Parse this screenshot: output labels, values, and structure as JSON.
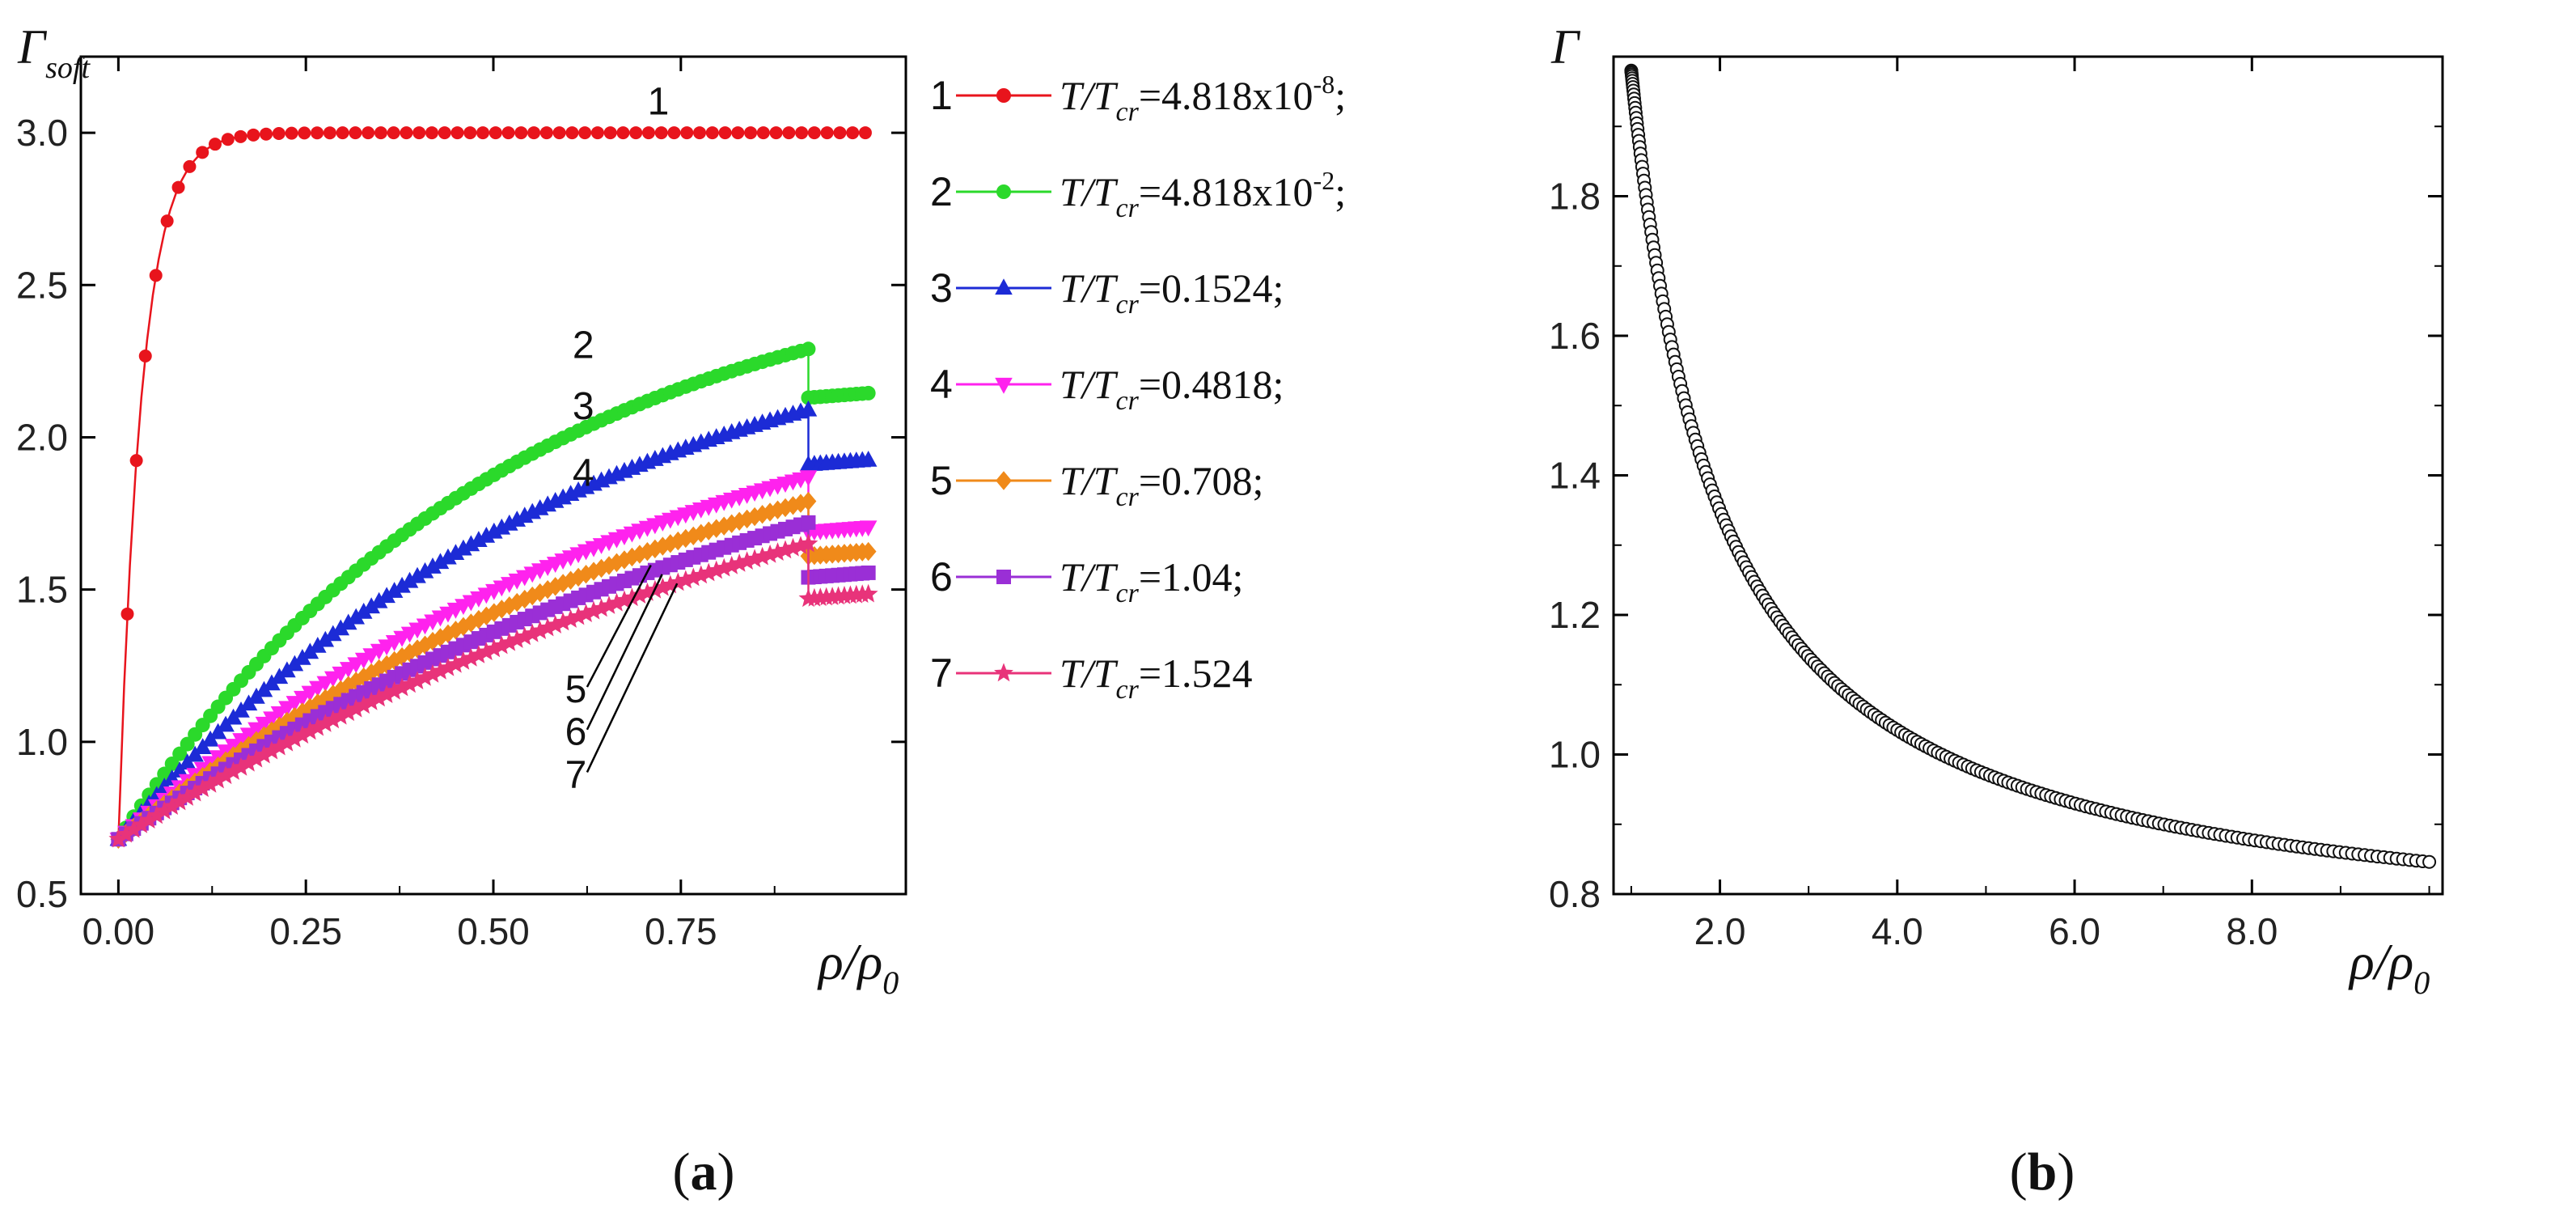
{
  "chart_data": [
    {
      "type": "line",
      "panel": "(a)",
      "ylabel_main": "Γ",
      "ylabel_sub": "soft",
      "xlabel_main": "ρ/ρ",
      "xlabel_sub": "0",
      "xlim": [
        -0.05,
        1.05
      ],
      "ylim": [
        0.5,
        3.25
      ],
      "xticks": [
        0.0,
        0.25,
        0.5,
        0.75
      ],
      "xtick_labels": [
        "0.00",
        "0.25",
        "0.50",
        "0.75"
      ],
      "yticks": [
        0.5,
        1.0,
        1.5,
        2.0,
        2.5,
        3.0
      ],
      "ytick_labels": [
        "0.5",
        "1.0",
        "1.5",
        "2.0",
        "2.5",
        "3.0"
      ],
      "series": [
        {
          "id": "1",
          "name": "T/Tcr=4.818x10-8;",
          "legend_num": "1",
          "legend_pre": "T/T",
          "legend_sub": "cr",
          "legend_mid": "=4.818x10",
          "legend_sup": "-8",
          "legend_post": ";",
          "color": "#e8141c",
          "marker": "circle",
          "model": "sat",
          "start": 0.68,
          "end": 3.0,
          "k": 32,
          "jump_end": 3.0
        },
        {
          "id": "2",
          "name": "T/Tcr=4.818x10-2;",
          "legend_num": "2",
          "legend_pre": "T/T",
          "legend_sub": "cr",
          "legend_mid": "=4.818x10",
          "legend_sup": "-2",
          "legend_post": ";",
          "color": "#2bd92b",
          "marker": "circle",
          "model": "growth",
          "start": 0.68,
          "end": 2.29,
          "k": 1.9,
          "jump_end": 2.13
        },
        {
          "id": "3",
          "name": "T/Tcr=0.1524;",
          "legend_num": "3",
          "legend_pre": "T/T",
          "legend_sub": "cr",
          "legend_mid": "=0.1524",
          "legend_sup": "",
          "legend_post": ";",
          "color": "#1c2bd6",
          "marker": "triangle-up",
          "model": "growth",
          "start": 0.68,
          "end": 2.09,
          "k": 1.6,
          "jump_end": 1.91
        },
        {
          "id": "4",
          "name": "T/Tcr=0.4818;",
          "legend_num": "4",
          "legend_pre": "T/T",
          "legend_sub": "cr",
          "legend_mid": "=0.4818",
          "legend_sup": "",
          "legend_post": ";",
          "color": "#ff22ee",
          "marker": "triangle-down",
          "model": "growth",
          "start": 0.68,
          "end": 1.87,
          "k": 1.3,
          "jump_end": 1.69
        },
        {
          "id": "5",
          "name": "T/Tcr=0.708;",
          "legend_num": "5",
          "legend_pre": "T/T",
          "legend_sub": "cr",
          "legend_mid": "=0.708",
          "legend_sup": "",
          "legend_post": ";",
          "color": "#f08a1a",
          "marker": "diamond",
          "model": "growth",
          "start": 0.68,
          "end": 1.79,
          "k": 1.15,
          "jump_end": 1.61
        },
        {
          "id": "6",
          "name": "T/Tcr=1.04;",
          "legend_num": "6",
          "legend_pre": "T/T",
          "legend_sub": "cr",
          "legend_mid": "=1.04",
          "legend_sup": "",
          "legend_post": ";",
          "color": "#9a2fd6",
          "marker": "square",
          "model": "growth",
          "start": 0.68,
          "end": 1.72,
          "k": 1.0,
          "jump_end": 1.54
        },
        {
          "id": "7",
          "name": "T/Tcr=1.524",
          "legend_num": "7",
          "legend_pre": "T/T",
          "legend_sub": "cr",
          "legend_mid": "=1.524",
          "legend_sup": "",
          "legend_post": "",
          "color": "#e8337a",
          "marker": "star",
          "model": "growth",
          "start": 0.68,
          "end": 1.65,
          "k": 0.9,
          "jump_end": 1.47
        }
      ],
      "jump_at": 0.92,
      "end_x": 1.0,
      "curve_labels": [
        {
          "text": "1",
          "x": 0.72,
          "y": 3.06
        },
        {
          "text": "2",
          "x": 0.62,
          "y": 2.26
        },
        {
          "text": "3",
          "x": 0.62,
          "y": 2.06
        },
        {
          "text": "4",
          "x": 0.62,
          "y": 1.84
        },
        {
          "text": "5",
          "x": 0.61,
          "y": 1.13
        },
        {
          "text": "6",
          "x": 0.61,
          "y": 0.99
        },
        {
          "text": "7",
          "x": 0.61,
          "y": 0.85
        }
      ],
      "pointer_lines": [
        {
          "x1": 0.625,
          "y1": 1.18,
          "x2": 0.71,
          "y2": 1.58
        },
        {
          "x1": 0.625,
          "y1": 1.04,
          "x2": 0.725,
          "y2": 1.55
        },
        {
          "x1": 0.625,
          "y1": 0.9,
          "x2": 0.745,
          "y2": 1.52
        }
      ]
    },
    {
      "type": "scatter",
      "panel": "(b)",
      "ylabel_main": "Γ",
      "xlabel_main": "ρ/ρ",
      "xlabel_sub": "0",
      "xlim": [
        0.8,
        10.15
      ],
      "ylim": [
        0.8,
        2.0
      ],
      "xticks": [
        2.0,
        4.0,
        6.0,
        8.0
      ],
      "xtick_labels": [
        "2.0",
        "4.0",
        "6.0",
        "8.0"
      ],
      "yticks": [
        0.8,
        1.0,
        1.2,
        1.4,
        1.6,
        1.8
      ],
      "ytick_labels": [
        "0.8",
        "1.0",
        "1.2",
        "1.4",
        "1.6",
        "1.8"
      ],
      "curve": {
        "model": "a + b/x",
        "a": 0.72,
        "b": 1.26,
        "x_start": 1.0,
        "x_end": 10.0
      },
      "marker": "open-circle",
      "color": "#111111"
    }
  ]
}
